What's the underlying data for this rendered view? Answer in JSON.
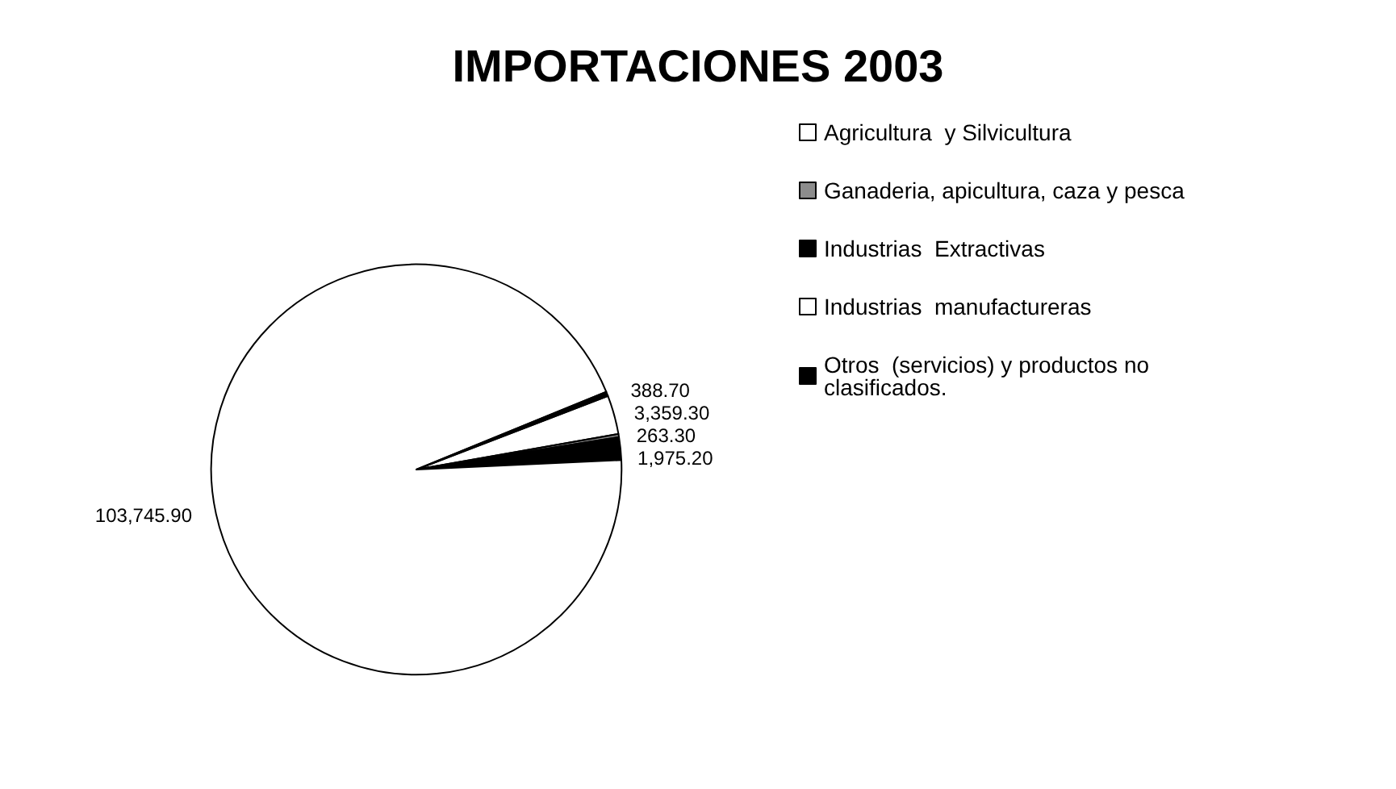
{
  "chart_data": {
    "type": "pie",
    "title": "IMPORTACIONES 2003",
    "categories": [
      "Agricultura  y Silvicultura",
      "Ganaderia, apicultura, caza y pesca",
      "Industrias  Extractivas",
      "Industrias  manufactureras",
      "Otros  (servicios) y productos no clasificados."
    ],
    "values": [
      3359.3,
      263.3,
      1975.2,
      103745.9,
      388.7
    ],
    "value_labels": [
      "3,359.30",
      "263.30",
      "1,975.20",
      "103,745.90",
      "388.70"
    ],
    "colors": [
      "#ffffff",
      "#8c8c8c",
      "#000000",
      "#ffffff",
      "#000000"
    ],
    "legend": "right"
  }
}
